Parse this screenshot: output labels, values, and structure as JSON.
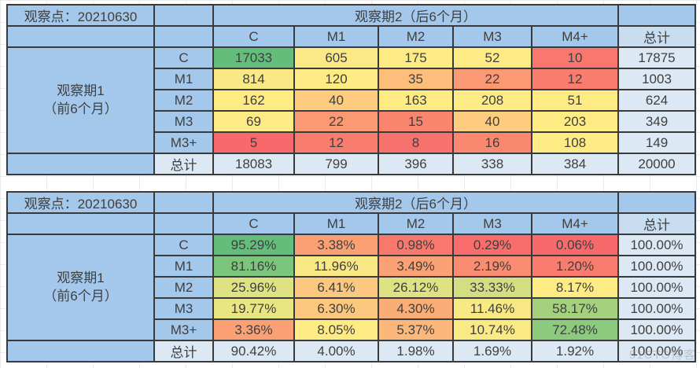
{
  "colors": {
    "header_blue": "#A4C8EB",
    "total_header_blue": "#C9DDF1",
    "total_cell_blue": "#DDE8F5",
    "scale_green": "#63BE7B",
    "scale_yellow": "#FFEB84",
    "scale_red": "#F8696B",
    "border": "#3A3A3A",
    "text": "#3F3F3F"
  },
  "watermark": "51CTO博客",
  "tables": [
    {
      "observation_point": "观察点：20210630",
      "col_group_header": "观察期2（后6个月）",
      "row_group_header_lines": [
        "观察期1",
        "（前6个月）"
      ],
      "col_headers": [
        "C",
        "M1",
        "M2",
        "M3",
        "M4+"
      ],
      "total_col_header": "总计",
      "row_headers": [
        "C",
        "M1",
        "M2",
        "M3",
        "M3+"
      ],
      "total_row_header": "总计",
      "data_rows": [
        {
          "cells": [
            {
              "v": "17033",
              "c": "#63BE7B"
            },
            {
              "v": "605",
              "c": "#FAE984"
            },
            {
              "v": "175",
              "c": "#FEEB84"
            },
            {
              "v": "52",
              "c": "#FFEB84"
            },
            {
              "v": "10",
              "c": "#F9776E"
            }
          ],
          "total": "17875"
        },
        {
          "cells": [
            {
              "v": "814",
              "c": "#F8E984"
            },
            {
              "v": "120",
              "c": "#FEEB84"
            },
            {
              "v": "35",
              "c": "#FDBE7B"
            },
            {
              "v": "22",
              "c": "#FB9974"
            },
            {
              "v": "12",
              "c": "#F97D6F"
            }
          ],
          "total": "1003"
        },
        {
          "cells": [
            {
              "v": "162",
              "c": "#FEEB84"
            },
            {
              "v": "40",
              "c": "#FDCC7E"
            },
            {
              "v": "163",
              "c": "#FEEB84"
            },
            {
              "v": "208",
              "c": "#FEEB84"
            },
            {
              "v": "51",
              "c": "#FFEB84"
            }
          ],
          "total": "624"
        },
        {
          "cells": [
            {
              "v": "69",
              "c": "#FFEB84"
            },
            {
              "v": "22",
              "c": "#FB9974"
            },
            {
              "v": "15",
              "c": "#FA856F"
            },
            {
              "v": "40",
              "c": "#FDCC7E"
            },
            {
              "v": "203",
              "c": "#FEEB84"
            }
          ],
          "total": "349"
        },
        {
          "cells": [
            {
              "v": "5",
              "c": "#F8696B"
            },
            {
              "v": "12",
              "c": "#F97D6F"
            },
            {
              "v": "8",
              "c": "#F8726D"
            },
            {
              "v": "16",
              "c": "#FA8871"
            },
            {
              "v": "108",
              "c": "#FFEB84"
            }
          ],
          "total": "149"
        }
      ],
      "total_row": {
        "cells": [
          "18083",
          "799",
          "396",
          "338",
          "384"
        ],
        "grand_total": "20000"
      }
    },
    {
      "observation_point": "观察点：20210630",
      "col_group_header": "观察期2（后6个月）",
      "row_group_header_lines": [
        "观察期1",
        "（前6个月）"
      ],
      "col_headers": [
        "C",
        "M1",
        "M2",
        "M3",
        "M4+"
      ],
      "total_col_header": "总计",
      "row_headers": [
        "C",
        "M1",
        "M2",
        "M3",
        "M3+"
      ],
      "total_row_header": "总计",
      "data_rows": [
        {
          "cells": [
            {
              "v": "95.29%",
              "c": "#63BE7B"
            },
            {
              "v": "3.38%",
              "c": "#FB9F75"
            },
            {
              "v": "0.98%",
              "c": "#F9786E"
            },
            {
              "v": "0.29%",
              "c": "#F86D6C"
            },
            {
              "v": "0.06%",
              "c": "#F8696B"
            }
          ],
          "total": "100.00%"
        },
        {
          "cells": [
            {
              "v": "81.16%",
              "c": "#7CC57C"
            },
            {
              "v": "11.96%",
              "c": "#F8E984"
            },
            {
              "v": "3.49%",
              "c": "#FBA176"
            },
            {
              "v": "2.19%",
              "c": "#FA8C72"
            },
            {
              "v": "1.20%",
              "c": "#F97C6F"
            }
          ],
          "total": "100.00%"
        },
        {
          "cells": [
            {
              "v": "25.96%",
              "c": "#DFE282"
            },
            {
              "v": "6.41%",
              "c": "#FCC77E"
            },
            {
              "v": "26.12%",
              "c": "#DFE282"
            },
            {
              "v": "33.33%",
              "c": "#D2DE81"
            },
            {
              "v": "8.17%",
              "c": "#FFEB84"
            }
          ],
          "total": "100.00%"
        },
        {
          "cells": [
            {
              "v": "19.77%",
              "c": "#EAE583"
            },
            {
              "v": "6.30%",
              "c": "#FCC77E"
            },
            {
              "v": "4.30%",
              "c": "#FBAD77"
            },
            {
              "v": "11.46%",
              "c": "#F9E984"
            },
            {
              "v": "58.17%",
              "c": "#A5D17F"
            }
          ],
          "total": "100.00%"
        },
        {
          "cells": [
            {
              "v": "3.36%",
              "c": "#FB9F75"
            },
            {
              "v": "8.05%",
              "c": "#FFEB84"
            },
            {
              "v": "5.37%",
              "c": "#FCB77A"
            },
            {
              "v": "10.74%",
              "c": "#FAEA84"
            },
            {
              "v": "72.48%",
              "c": "#8CCA7D"
            }
          ],
          "total": "100.00%"
        }
      ],
      "total_row": {
        "cells": [
          "90.42%",
          "4.00%",
          "1.98%",
          "1.69%",
          "1.92%"
        ],
        "grand_total": "100.00%"
      }
    }
  ]
}
